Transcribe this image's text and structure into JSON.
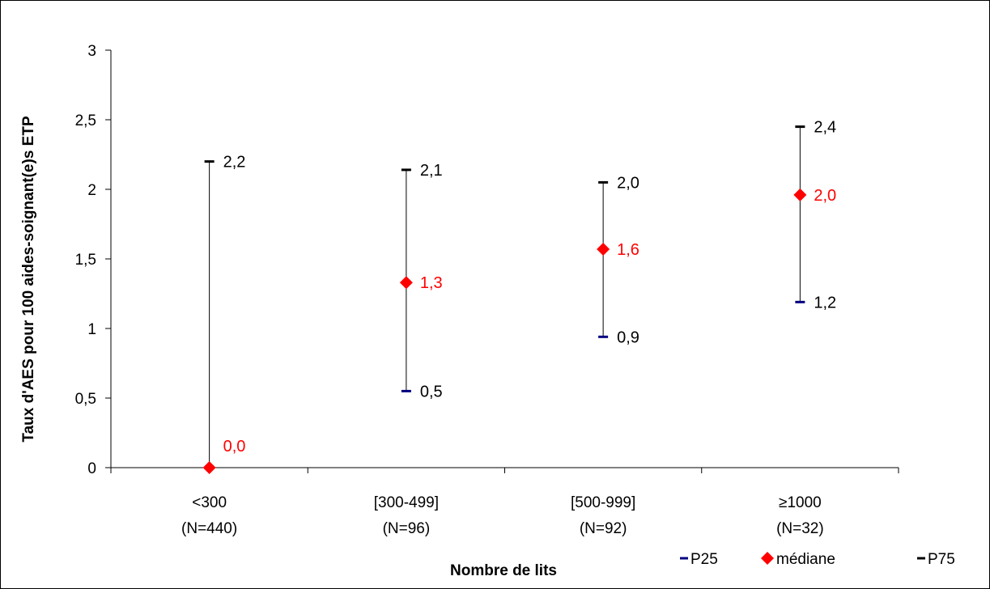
{
  "chart_data": {
    "type": "scatter",
    "xlabel": "Nombre de lits",
    "ylabel": "Taux d'AES pour 100 aides-soignant(e)s ETP",
    "ylim": [
      0,
      3
    ],
    "yticks": [
      {
        "value": 0,
        "label": "0"
      },
      {
        "value": 0.5,
        "label": "0,5"
      },
      {
        "value": 1,
        "label": "1"
      },
      {
        "value": 1.5,
        "label": "1,5"
      },
      {
        "value": 2,
        "label": "2"
      },
      {
        "value": 2.5,
        "label": "2,5"
      },
      {
        "value": 3,
        "label": "3"
      }
    ],
    "categories": [
      {
        "line1": "<300",
        "line2": "(N=440)"
      },
      {
        "line1": "[300-499]",
        "line2": "(N=96)"
      },
      {
        "line1": "[500-999]",
        "line2": "(N=92)"
      },
      {
        "line1": "≥1000",
        "line2": "(N=32)"
      }
    ],
    "series": [
      {
        "name": "P25",
        "color": "#00007f",
        "marker": "dash",
        "values": [
          0.0,
          0.55,
          0.94,
          1.19
        ],
        "labels": [
          "",
          "0,5",
          "0,9",
          "1,2"
        ]
      },
      {
        "name": "médiane",
        "color": "#ff0000",
        "marker": "diamond",
        "values": [
          0.0,
          1.33,
          1.57,
          1.96
        ],
        "labels": [
          "0,0",
          "1,3",
          "1,6",
          "2,0"
        ]
      },
      {
        "name": "P75",
        "color": "#000000",
        "marker": "dash",
        "values": [
          2.2,
          2.14,
          2.05,
          2.45
        ],
        "labels": [
          "2,2",
          "2,1",
          "2,0",
          "2,4"
        ]
      }
    ],
    "grid": false,
    "legend_position": "bottom-right"
  }
}
